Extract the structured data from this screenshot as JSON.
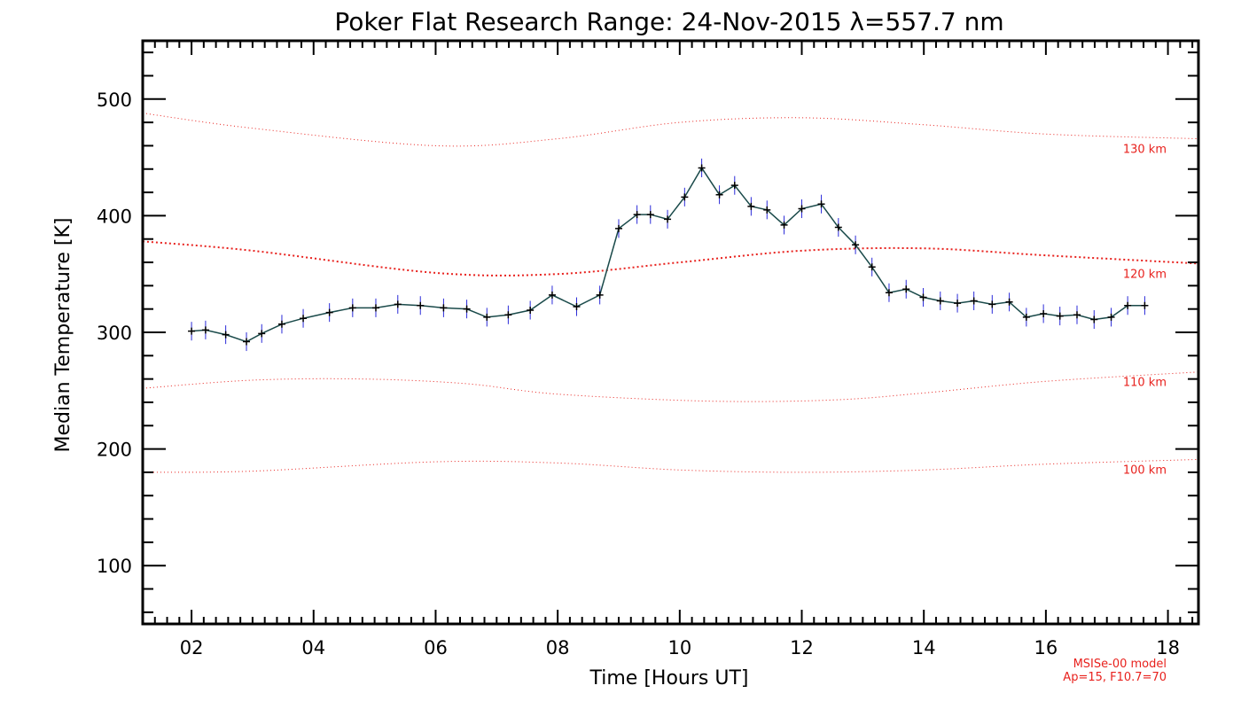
{
  "chart_data": {
    "type": "line",
    "title": "Poker Flat Research Range: 24-Nov-2015 λ=557.7 nm",
    "xlabel": "Time [Hours UT]",
    "ylabel": "Median Temperature [K]",
    "xlim": [
      1.2,
      18.5
    ],
    "ylim": [
      50,
      550
    ],
    "x_ticks": [
      2,
      4,
      6,
      8,
      10,
      12,
      14,
      16,
      18
    ],
    "x_tick_labels": [
      "02",
      "04",
      "06",
      "08",
      "10",
      "12",
      "14",
      "16",
      "18"
    ],
    "y_ticks": [
      100,
      200,
      300,
      400,
      500
    ],
    "y_tick_labels": [
      "100",
      "200",
      "300",
      "400",
      "500"
    ],
    "grid": false,
    "colors": {
      "data_line": "#1a4a4a",
      "error_bars": "#2a2ad8",
      "marker": "#000000",
      "model": "#e8211d"
    },
    "series": {
      "x": [
        2.0,
        2.23,
        2.56,
        2.9,
        3.15,
        3.48,
        3.83,
        4.26,
        4.64,
        5.02,
        5.38,
        5.75,
        6.13,
        6.51,
        6.84,
        7.19,
        7.55,
        7.91,
        8.31,
        8.69,
        9.0,
        9.3,
        9.52,
        9.8,
        10.08,
        10.36,
        10.65,
        10.9,
        11.17,
        11.43,
        11.71,
        12.0,
        12.32,
        12.6,
        12.88,
        13.15,
        13.43,
        13.71,
        13.99,
        14.27,
        14.55,
        14.82,
        15.12,
        15.4,
        15.68,
        15.96,
        16.23,
        16.51,
        16.79,
        17.07,
        17.34,
        17.62
      ],
      "y": [
        301,
        302,
        298,
        292,
        299,
        307,
        312,
        317,
        321,
        321,
        324,
        323,
        321,
        320,
        313,
        315,
        319,
        332,
        322,
        332,
        389,
        401,
        401,
        397,
        416,
        441,
        418,
        426,
        408,
        405,
        392,
        406,
        410,
        390,
        375,
        356,
        334,
        337,
        330,
        327,
        325,
        327,
        324,
        326,
        313,
        316,
        314,
        315,
        311,
        313,
        323,
        323
      ]
    },
    "error_bar_halfwidth": 8,
    "model": {
      "name": "MSISe-00 model",
      "params": "Ap=15, F10.7=70",
      "curves": [
        {
          "label": "130 km",
          "x": [
            1.2,
            3,
            6,
            8,
            10,
            12,
            14,
            16,
            18.5
          ],
          "y": [
            488,
            475,
            460,
            466,
            480,
            484,
            478,
            470,
            466
          ]
        },
        {
          "label": "120 km",
          "x": [
            1.2,
            3,
            6,
            8,
            10,
            12,
            14,
            16,
            18.5
          ],
          "y": [
            378,
            370,
            351,
            350,
            360,
            370,
            372,
            366,
            359
          ]
        },
        {
          "label": "110 km",
          "x": [
            1.2,
            3,
            4.8,
            6.5,
            8,
            10.5,
            12.5,
            14,
            16,
            18.5
          ],
          "y": [
            252,
            259,
            260,
            256,
            247,
            241,
            242,
            248,
            258,
            266
          ]
        },
        {
          "label": "100 km",
          "x": [
            1.2,
            3,
            6,
            8,
            10,
            12,
            14,
            16,
            18.5
          ],
          "y": [
            180,
            181,
            189,
            188,
            182,
            180,
            182,
            187,
            191
          ]
        }
      ]
    }
  }
}
